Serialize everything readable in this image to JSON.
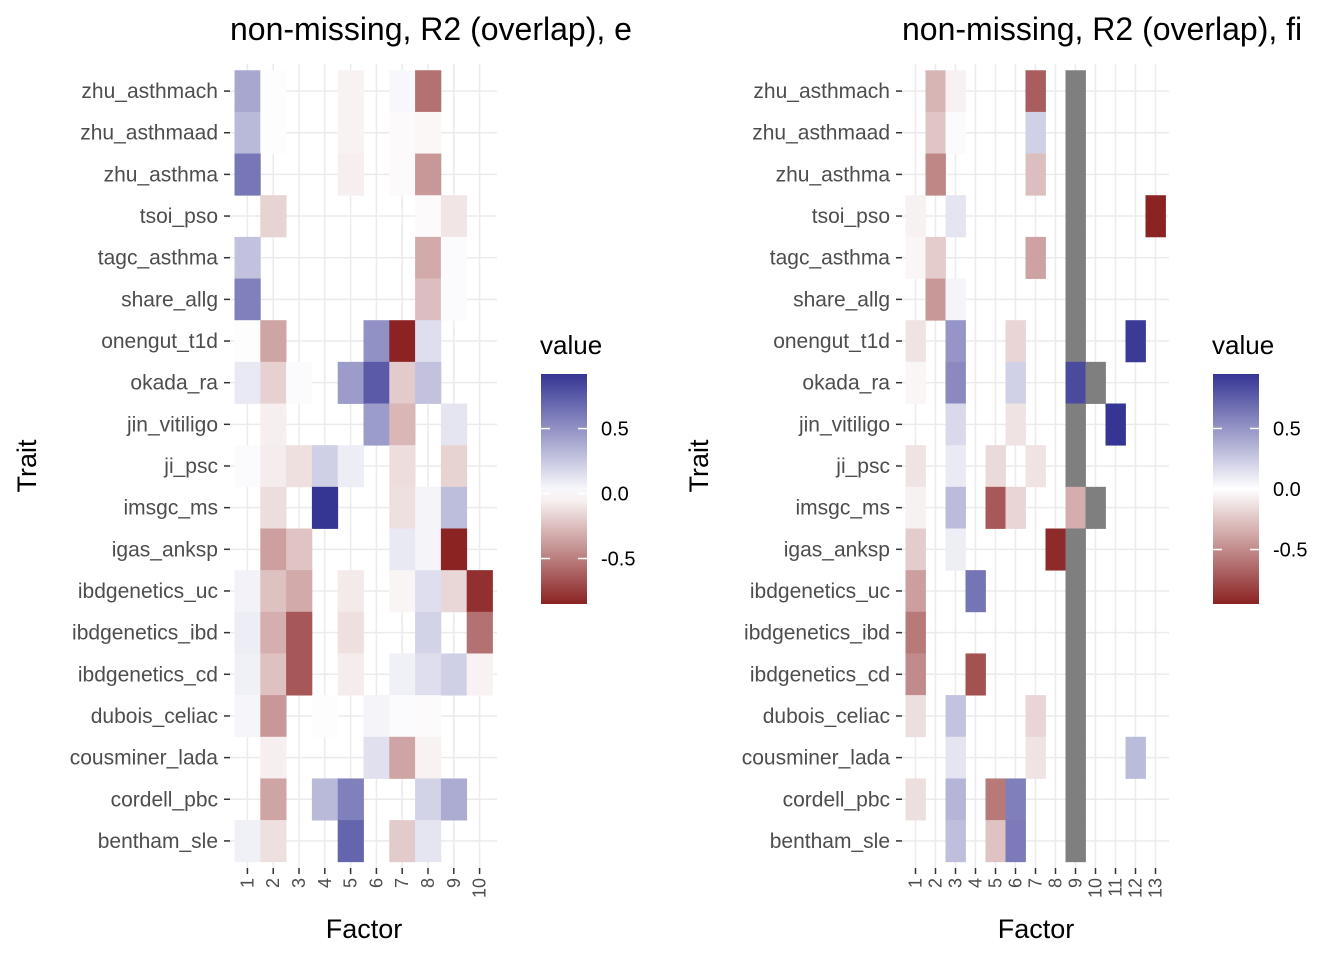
{
  "chart_data": [
    {
      "type": "heatmap",
      "title": "non-missing, R2 (overlap), e",
      "xlabel": "Factor",
      "ylabel": "Trait",
      "x_categories": [
        "1",
        "2",
        "3",
        "4",
        "5",
        "6",
        "7",
        "8",
        "9",
        "10"
      ],
      "y_categories": [
        "zhu_asthmach",
        "zhu_asthmaad",
        "zhu_asthma",
        "tsoi_pso",
        "tagc_asthma",
        "share_allg",
        "onengut_t1d",
        "okada_ra",
        "jin_vitiligo",
        "ji_psc",
        "imsgc_ms",
        "igas_anksp",
        "ibdgenetics_uc",
        "ibdgenetics_ibd",
        "ibdgenetics_cd",
        "dubois_celiac",
        "cousminer_lada",
        "cordell_pbc",
        "bentham_sle"
      ],
      "values": [
        [
          0.4,
          0.01,
          0,
          0,
          -0.05,
          0,
          0.03,
          -0.55,
          0,
          0
        ],
        [
          0.32,
          0.01,
          0,
          0,
          -0.05,
          0,
          -0.02,
          -0.03,
          0,
          0
        ],
        [
          0.62,
          0,
          0,
          0,
          -0.06,
          0,
          -0.02,
          -0.4,
          0,
          0
        ],
        [
          0,
          -0.17,
          0,
          0,
          0,
          0,
          0,
          -0.02,
          -0.1,
          0
        ],
        [
          0.28,
          0,
          0,
          0,
          0,
          0,
          0,
          -0.33,
          0.02,
          0
        ],
        [
          0.58,
          0,
          0,
          0,
          0,
          0,
          0,
          -0.25,
          0.02,
          0
        ],
        [
          0.01,
          -0.35,
          0,
          0,
          0,
          0.5,
          -0.85,
          0.15,
          0,
          0
        ],
        [
          0.1,
          -0.18,
          0.02,
          0,
          0.45,
          0.75,
          -0.2,
          0.28,
          0,
          0
        ],
        [
          0,
          -0.06,
          0,
          0,
          0,
          0.45,
          -0.28,
          0,
          0.12,
          0
        ],
        [
          0.02,
          -0.07,
          -0.12,
          0.22,
          0.08,
          0,
          -0.13,
          0,
          -0.17,
          0
        ],
        [
          0,
          -0.13,
          0,
          0.92,
          0,
          0,
          -0.12,
          0.05,
          0.3,
          0
        ],
        [
          0,
          -0.37,
          -0.23,
          0,
          0,
          0,
          0.1,
          0.05,
          -0.85,
          0
        ],
        [
          0.06,
          -0.24,
          -0.33,
          0,
          -0.08,
          0,
          -0.04,
          0.15,
          -0.16,
          -0.8
        ],
        [
          0.08,
          -0.31,
          -0.65,
          0,
          -0.12,
          0,
          0,
          0.2,
          0,
          -0.55
        ],
        [
          0.07,
          -0.24,
          -0.65,
          0,
          -0.07,
          0,
          0.07,
          0.15,
          0.22,
          -0.05
        ],
        [
          0.04,
          -0.4,
          0,
          0.01,
          0,
          0.05,
          0.02,
          -0.02,
          0,
          0
        ],
        [
          0,
          -0.06,
          0,
          0,
          0,
          0.14,
          -0.35,
          -0.05,
          0,
          0
        ],
        [
          0,
          -0.35,
          0,
          0.32,
          0.58,
          0,
          0,
          0.2,
          0.38,
          0
        ],
        [
          0.07,
          -0.12,
          0,
          0,
          0.7,
          0,
          -0.2,
          0.12,
          0,
          0
        ]
      ],
      "na_color": "#7f7f7f",
      "legend": {
        "title": "value",
        "placement": "right",
        "breaks": [
          0.5,
          0.0,
          -0.5
        ],
        "labels": [
          "0.5",
          "0.0",
          "-0.5"
        ],
        "range": [
          -0.85,
          0.92
        ],
        "low_color": "#8b2323",
        "mid_color": "#ffffff",
        "high_color": "#353594"
      }
    },
    {
      "type": "heatmap",
      "title": "non-missing, R2 (overlap), fi",
      "xlabel": "Factor",
      "ylabel": "Trait",
      "x_categories": [
        "1",
        "2",
        "3",
        "4",
        "5",
        "6",
        "7",
        "8",
        "9",
        "10",
        "11",
        "12",
        "13"
      ],
      "y_categories": [
        "zhu_asthmach",
        "zhu_asthmaad",
        "zhu_asthma",
        "tsoi_pso",
        "tagc_asthma",
        "share_allg",
        "onengut_t1d",
        "okada_ra",
        "jin_vitiligo",
        "ji_psc",
        "imsgc_ms",
        "igas_anksp",
        "ibdgenetics_uc",
        "ibdgenetics_ibd",
        "ibdgenetics_cd",
        "dubois_celiac",
        "cousminer_lada",
        "cordell_pbc",
        "bentham_sle"
      ],
      "values": [
        [
          0,
          -0.32,
          -0.06,
          0,
          0,
          0,
          -0.7,
          0,
          null,
          0,
          0,
          0,
          0
        ],
        [
          0,
          -0.25,
          0.02,
          0,
          0,
          0,
          0.22,
          0,
          null,
          0,
          0,
          0,
          0
        ],
        [
          0,
          -0.52,
          0,
          0,
          0,
          0,
          -0.28,
          0,
          null,
          0,
          0,
          0,
          0
        ],
        [
          -0.06,
          0,
          0.12,
          0,
          0,
          0,
          0,
          0,
          null,
          0,
          0,
          0,
          -0.95
        ],
        [
          -0.04,
          -0.22,
          0,
          0,
          0,
          0,
          -0.4,
          0,
          null,
          0,
          0,
          0,
          0
        ],
        [
          0,
          -0.45,
          0.05,
          0,
          0,
          0,
          0,
          0,
          null,
          0,
          0,
          0,
          0
        ],
        [
          -0.12,
          0,
          0.5,
          0,
          0,
          -0.18,
          0,
          0,
          null,
          0,
          0,
          0.92,
          0
        ],
        [
          -0.04,
          0,
          0.55,
          0,
          0,
          0.22,
          0,
          0,
          0.85,
          null,
          0,
          0,
          0
        ],
        [
          0,
          0,
          0.18,
          0,
          0,
          -0.12,
          0,
          0,
          null,
          0,
          0.95,
          0,
          0
        ],
        [
          -0.12,
          0,
          0.1,
          0,
          -0.16,
          0,
          -0.12,
          0,
          null,
          0,
          0,
          0,
          0
        ],
        [
          -0.06,
          0,
          0.32,
          0,
          -0.72,
          -0.18,
          0,
          0,
          -0.35,
          null,
          0,
          0,
          0
        ],
        [
          -0.22,
          0,
          0.08,
          0,
          0,
          0,
          0,
          -0.92,
          null,
          0,
          0,
          0,
          0
        ],
        [
          -0.42,
          0,
          0,
          0.65,
          0,
          0,
          0,
          0,
          null,
          0,
          0,
          0,
          0
        ],
        [
          -0.58,
          0,
          0,
          0,
          0,
          0,
          0,
          0,
          null,
          0,
          0,
          0,
          0
        ],
        [
          -0.5,
          0,
          0,
          -0.75,
          0,
          0,
          0,
          0,
          null,
          0,
          0,
          0,
          0
        ],
        [
          -0.14,
          0,
          0.28,
          0,
          0,
          0,
          -0.18,
          0,
          null,
          0,
          0,
          0,
          0
        ],
        [
          0,
          0,
          0.12,
          0,
          0,
          0,
          -0.12,
          0,
          null,
          0,
          0,
          0.32,
          0
        ],
        [
          -0.14,
          0,
          0.35,
          0,
          -0.58,
          0.6,
          0,
          0,
          null,
          0,
          0,
          0,
          0
        ],
        [
          0,
          0,
          0.3,
          0,
          -0.26,
          0.62,
          0,
          0,
          null,
          0,
          0,
          0,
          0
        ]
      ],
      "na_color": "#7f7f7f",
      "legend": {
        "title": "value",
        "placement": "right",
        "breaks": [
          0.5,
          0.0,
          -0.5
        ],
        "labels": [
          "0.5",
          "0.0",
          "-0.5"
        ],
        "range": [
          -0.95,
          0.95
        ],
        "low_color": "#8b2323",
        "mid_color": "#ffffff",
        "high_color": "#353594"
      }
    }
  ]
}
